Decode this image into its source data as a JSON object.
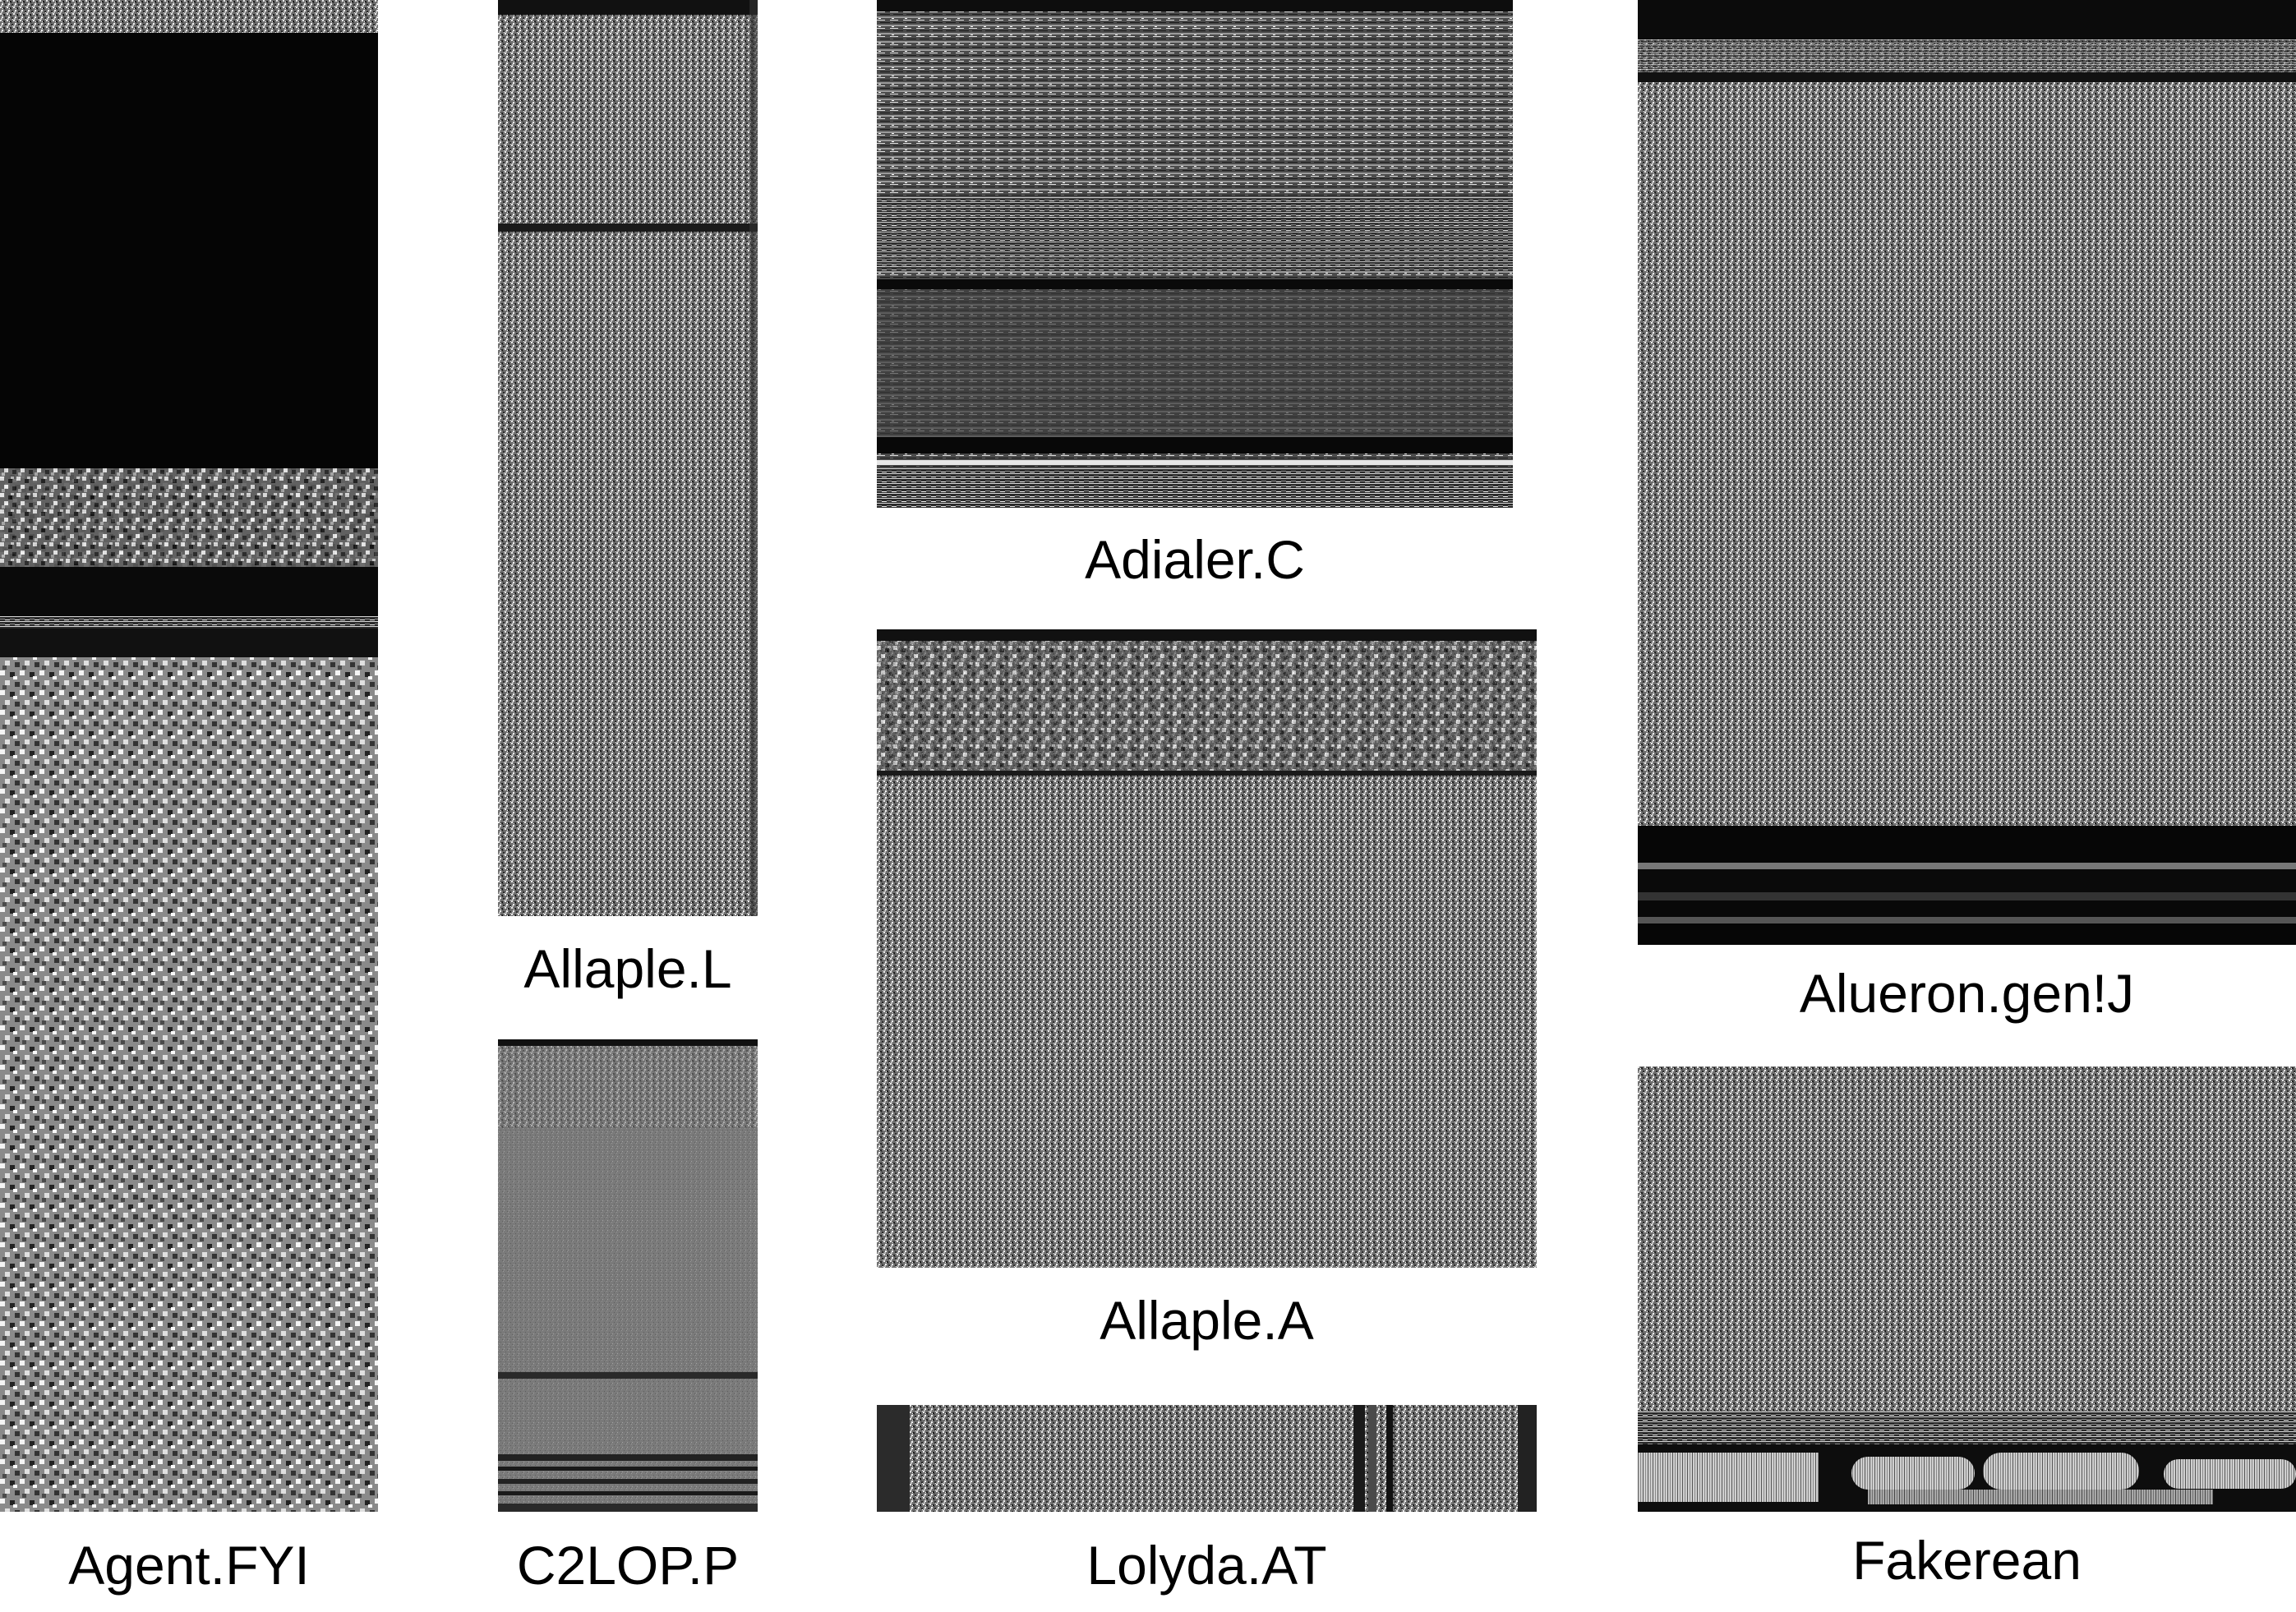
{
  "panels": [
    {
      "id": "agent",
      "label": "Agent.FYI"
    },
    {
      "id": "allaple-l",
      "label": "Allaple.L"
    },
    {
      "id": "c2lop",
      "label": "C2LOP.P"
    },
    {
      "id": "adialer",
      "label": "Adialer.C"
    },
    {
      "id": "allaple-a",
      "label": "Allaple.A"
    },
    {
      "id": "lolyda",
      "label": "Lolyda.AT"
    },
    {
      "id": "alueron",
      "label": "Alueron.gen!J"
    },
    {
      "id": "fakerean",
      "label": "Fakerean"
    }
  ],
  "colors": {
    "background": "#ffffff",
    "label": "#000000"
  },
  "rendering": "grayscale byte-plot texture"
}
